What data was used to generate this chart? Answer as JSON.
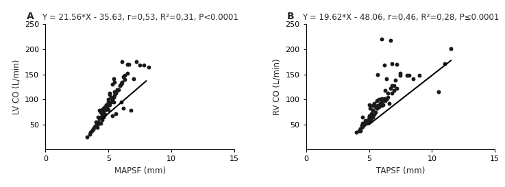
{
  "panel_A": {
    "label": "A",
    "title": "Y = 21.56*X - 35.63, r=0,53, R²=0,31, P<0.0001",
    "xlabel": "MAPSF (mm)",
    "ylabel": "LV CO (L/min)",
    "xlim": [
      0,
      15
    ],
    "ylim": [
      0,
      250
    ],
    "xticks": [
      0,
      5,
      10,
      15
    ],
    "yticks": [
      50,
      100,
      150,
      200,
      250
    ],
    "slope": 21.56,
    "intercept": -35.63,
    "scatter_x": [
      3.3,
      3.5,
      3.6,
      3.7,
      3.8,
      3.9,
      4.0,
      4.0,
      4.1,
      4.2,
      4.2,
      4.3,
      4.3,
      4.4,
      4.4,
      4.5,
      4.5,
      4.5,
      4.6,
      4.6,
      4.7,
      4.7,
      4.8,
      4.8,
      4.9,
      5.0,
      5.0,
      5.1,
      5.2,
      5.2,
      5.3,
      5.4,
      5.5,
      5.5,
      5.6,
      5.7,
      5.8,
      5.9,
      6.0,
      6.1,
      6.2,
      6.3,
      6.5,
      6.6,
      7.0,
      7.2,
      7.8,
      5.0,
      5.1,
      5.3,
      5.4,
      5.5,
      5.7,
      6.0,
      6.3,
      7.5,
      8.2,
      4.3,
      4.6,
      5.1,
      5.7,
      6.1,
      6.5,
      4.4,
      5.3,
      5.6,
      6.2,
      6.8,
      3.8,
      4.1,
      4.6,
      5.0,
      5.4,
      6.0
    ],
    "scatter_y": [
      25,
      30,
      35,
      38,
      42,
      45,
      48,
      55,
      50,
      55,
      65,
      52,
      62,
      65,
      75,
      60,
      70,
      80,
      75,
      82,
      70,
      85,
      80,
      90,
      85,
      80,
      95,
      90,
      95,
      105,
      100,
      105,
      108,
      115,
      112,
      118,
      120,
      128,
      132,
      135,
      145,
      148,
      152,
      170,
      142,
      175,
      168,
      100,
      110,
      130,
      142,
      135,
      120,
      130,
      140,
      168,
      165,
      78,
      80,
      112,
      120,
      175,
      170,
      52,
      68,
      72,
      82,
      78,
      40,
      44,
      65,
      90,
      95,
      95
    ],
    "line_x_start": 4.5,
    "line_x_end": 8.0
  },
  "panel_B": {
    "label": "B",
    "title": "Y = 19.62*X - 48.06, r=0,46, R²=0,28, P≤0.0001",
    "xlabel": "TAPSF (mm)",
    "ylabel": "RV CO (L/min)",
    "xlim": [
      0,
      15
    ],
    "ylim": [
      0,
      250
    ],
    "xticks": [
      0,
      5,
      10,
      15
    ],
    "yticks": [
      50,
      100,
      150,
      200,
      250
    ],
    "slope": 19.62,
    "intercept": -48.06,
    "scatter_x": [
      4.0,
      4.2,
      4.3,
      4.4,
      4.5,
      4.5,
      4.6,
      4.7,
      4.8,
      4.9,
      5.0,
      5.0,
      5.1,
      5.1,
      5.2,
      5.2,
      5.3,
      5.3,
      5.4,
      5.5,
      5.5,
      5.6,
      5.7,
      5.8,
      5.9,
      6.0,
      6.0,
      6.1,
      6.2,
      6.3,
      6.4,
      6.5,
      6.6,
      6.8,
      7.0,
      7.2,
      7.5,
      8.0,
      8.5,
      9.0,
      10.5,
      11.0,
      11.5,
      4.3,
      4.6,
      5.0,
      5.3,
      5.6,
      5.9,
      6.2,
      6.5,
      6.8,
      7.1,
      7.5,
      8.2,
      4.3,
      4.6,
      5.0,
      5.3,
      5.6,
      6.0,
      6.3,
      6.7,
      7.0,
      4.5,
      5.1,
      5.4,
      5.8,
      6.2,
      6.8,
      5.0,
      5.7,
      6.4,
      7.2,
      6.0,
      6.7
    ],
    "scatter_y": [
      35,
      38,
      42,
      48,
      45,
      52,
      50,
      58,
      52,
      60,
      55,
      65,
      58,
      68,
      62,
      72,
      65,
      78,
      70,
      75,
      85,
      82,
      88,
      85,
      92,
      88,
      95,
      90,
      100,
      98,
      100,
      105,
      92,
      112,
      118,
      122,
      148,
      148,
      142,
      148,
      115,
      172,
      202,
      38,
      50,
      65,
      78,
      82,
      92,
      102,
      112,
      128,
      138,
      152,
      148,
      42,
      52,
      68,
      88,
      98,
      102,
      118,
      122,
      128,
      65,
      82,
      92,
      100,
      168,
      172,
      90,
      150,
      142,
      170,
      220,
      218
    ],
    "line_x_start": 5.0,
    "line_x_end": 11.5
  },
  "bg_color": "#ffffff",
  "text_color": "#2a2a2a",
  "scatter_color": "#1a1a1a",
  "line_color": "#000000",
  "marker_size": 18,
  "title_fontsize": 8.5,
  "label_fontsize": 8.5,
  "tick_fontsize": 8,
  "panel_label_fontsize": 10
}
